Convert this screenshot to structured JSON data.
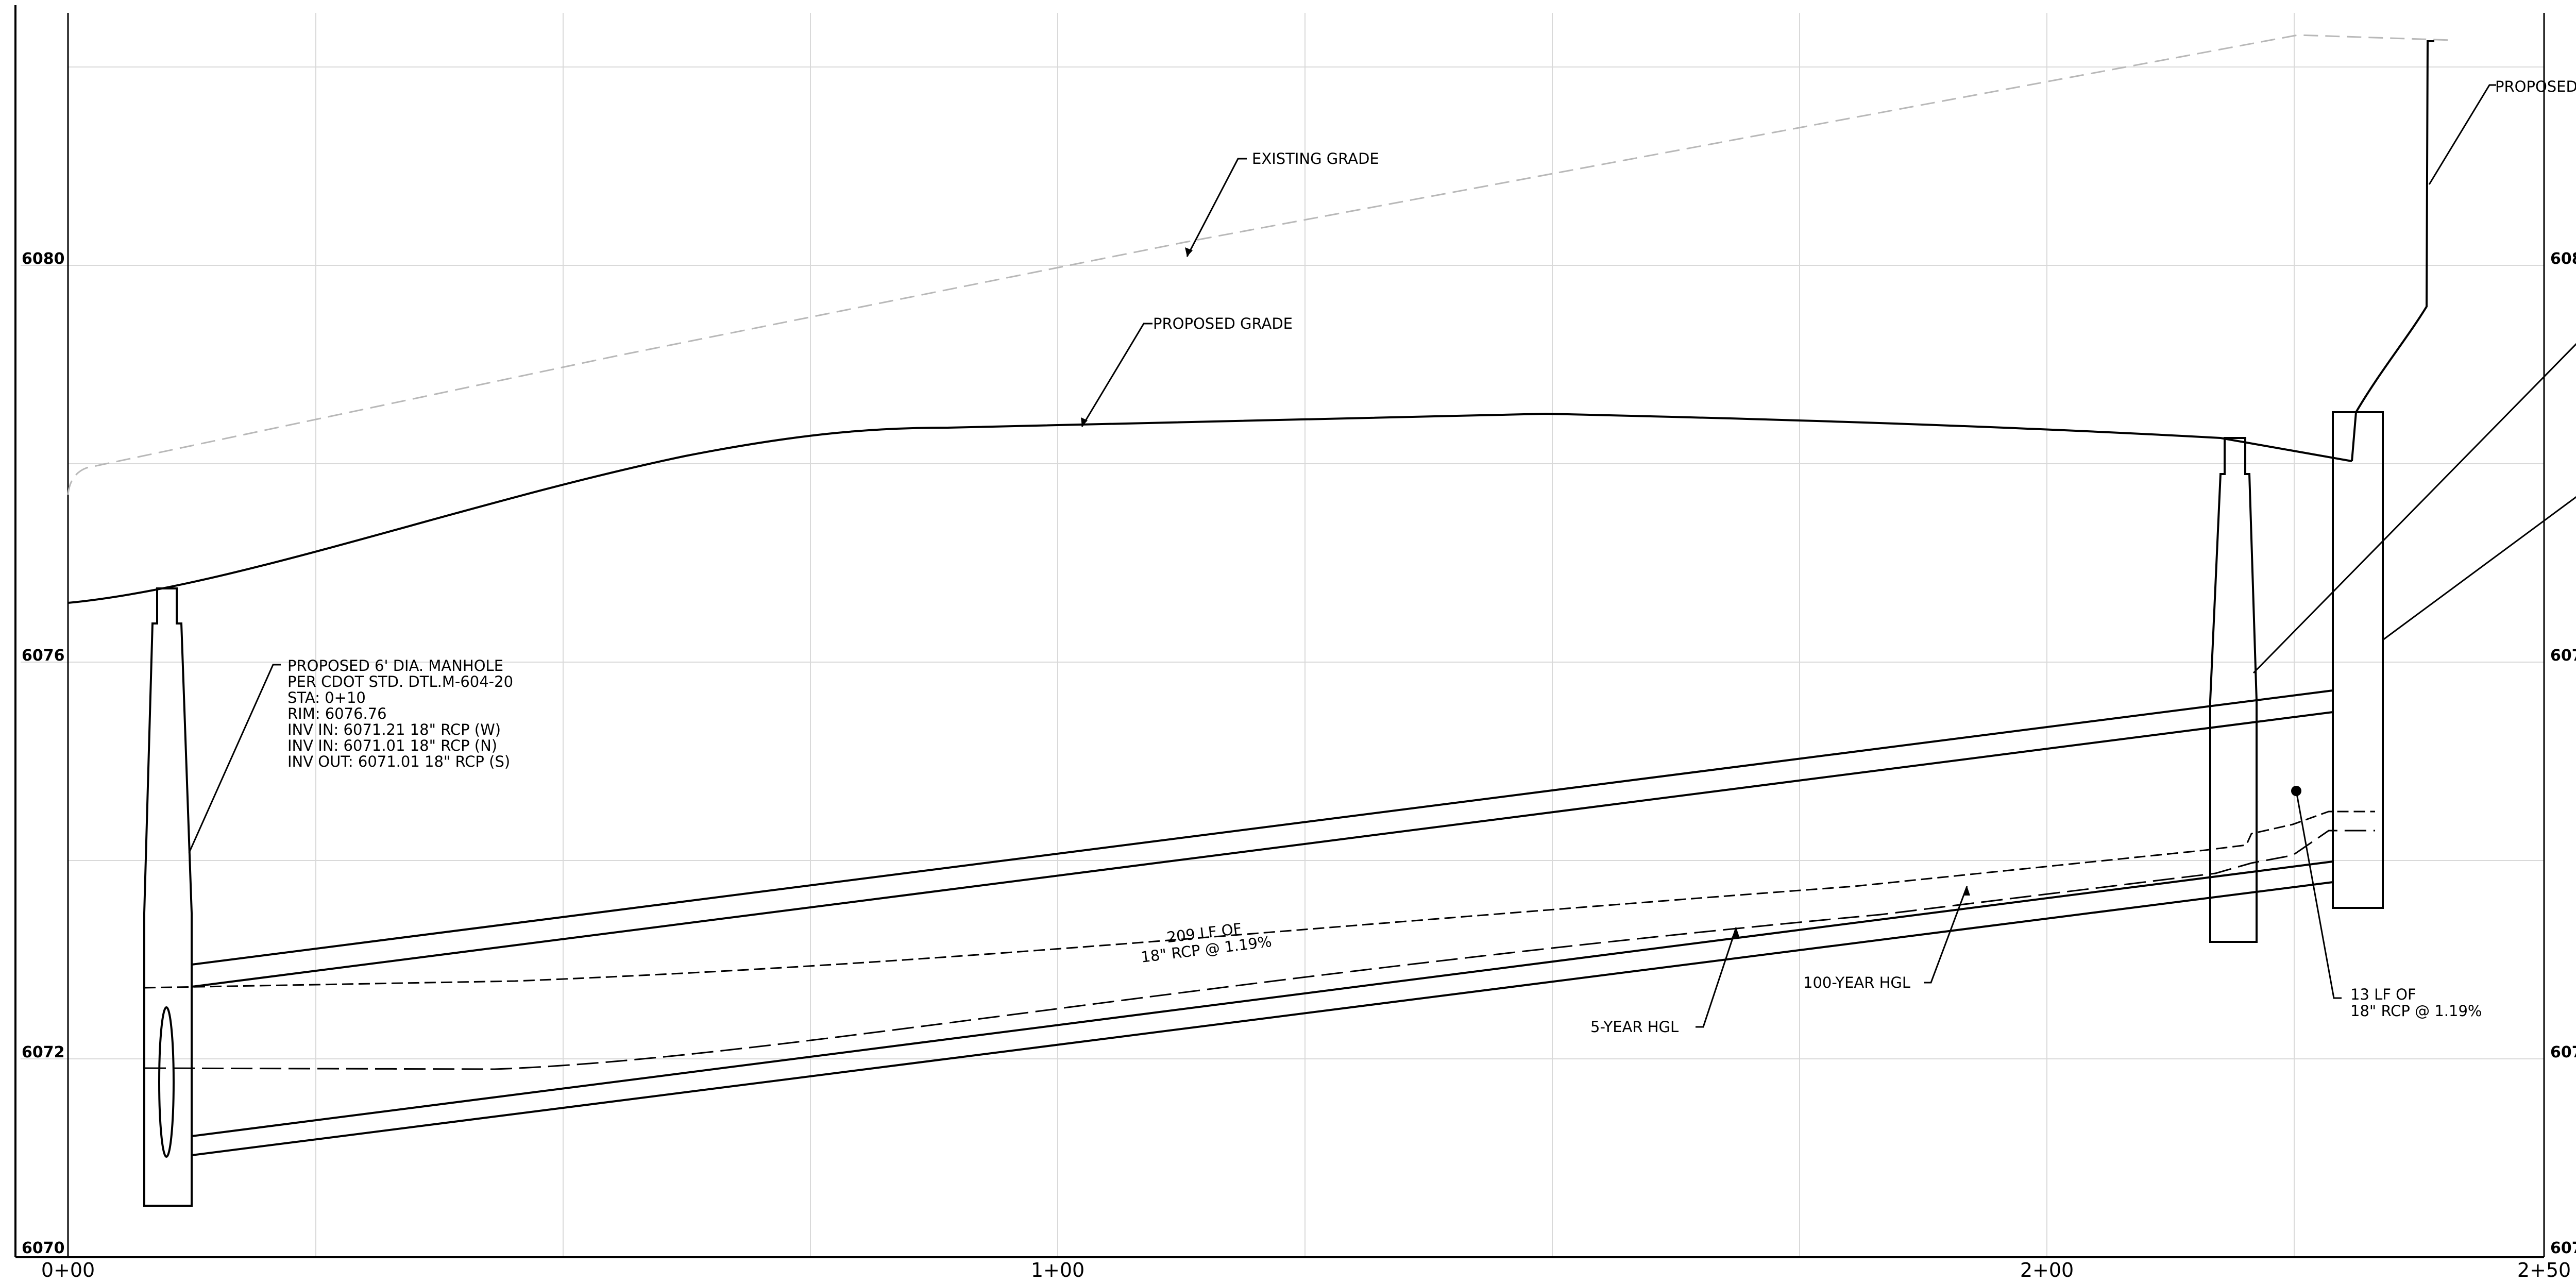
{
  "elevation_labels": [
    "6080",
    "6076",
    "6072",
    "6070"
  ],
  "station_labels": [
    "0+00",
    "1+00",
    "2+00",
    "2+50"
  ],
  "callouts": {
    "existing_grade": "EXISTING GRADE",
    "proposed_grade": "PROPOSED GRADE",
    "proposed_right": "PROPOSED RE",
    "hgl_100": "100-YEAR HGL",
    "hgl_5": "5-YEAR HGL"
  },
  "manhole_note": [
    "PROPOSED 6' DIA. MANHOLE",
    "PER CDOT STD. DTL.M-604-20",
    "STA: 0+10",
    "RIM: 6076.76",
    "INV IN: 6071.21 18\" RCP (W)",
    "INV IN: 6071.01 18\" RCP (N)",
    "INV OUT: 6071.01 18\" RCP (S)"
  ],
  "pipe_main": [
    "209 LF OF",
    "18\" RCP @ 1.19%"
  ],
  "pipe_short": [
    "13 LF OF",
    "18\" RCP @ 1.19%"
  ]
}
